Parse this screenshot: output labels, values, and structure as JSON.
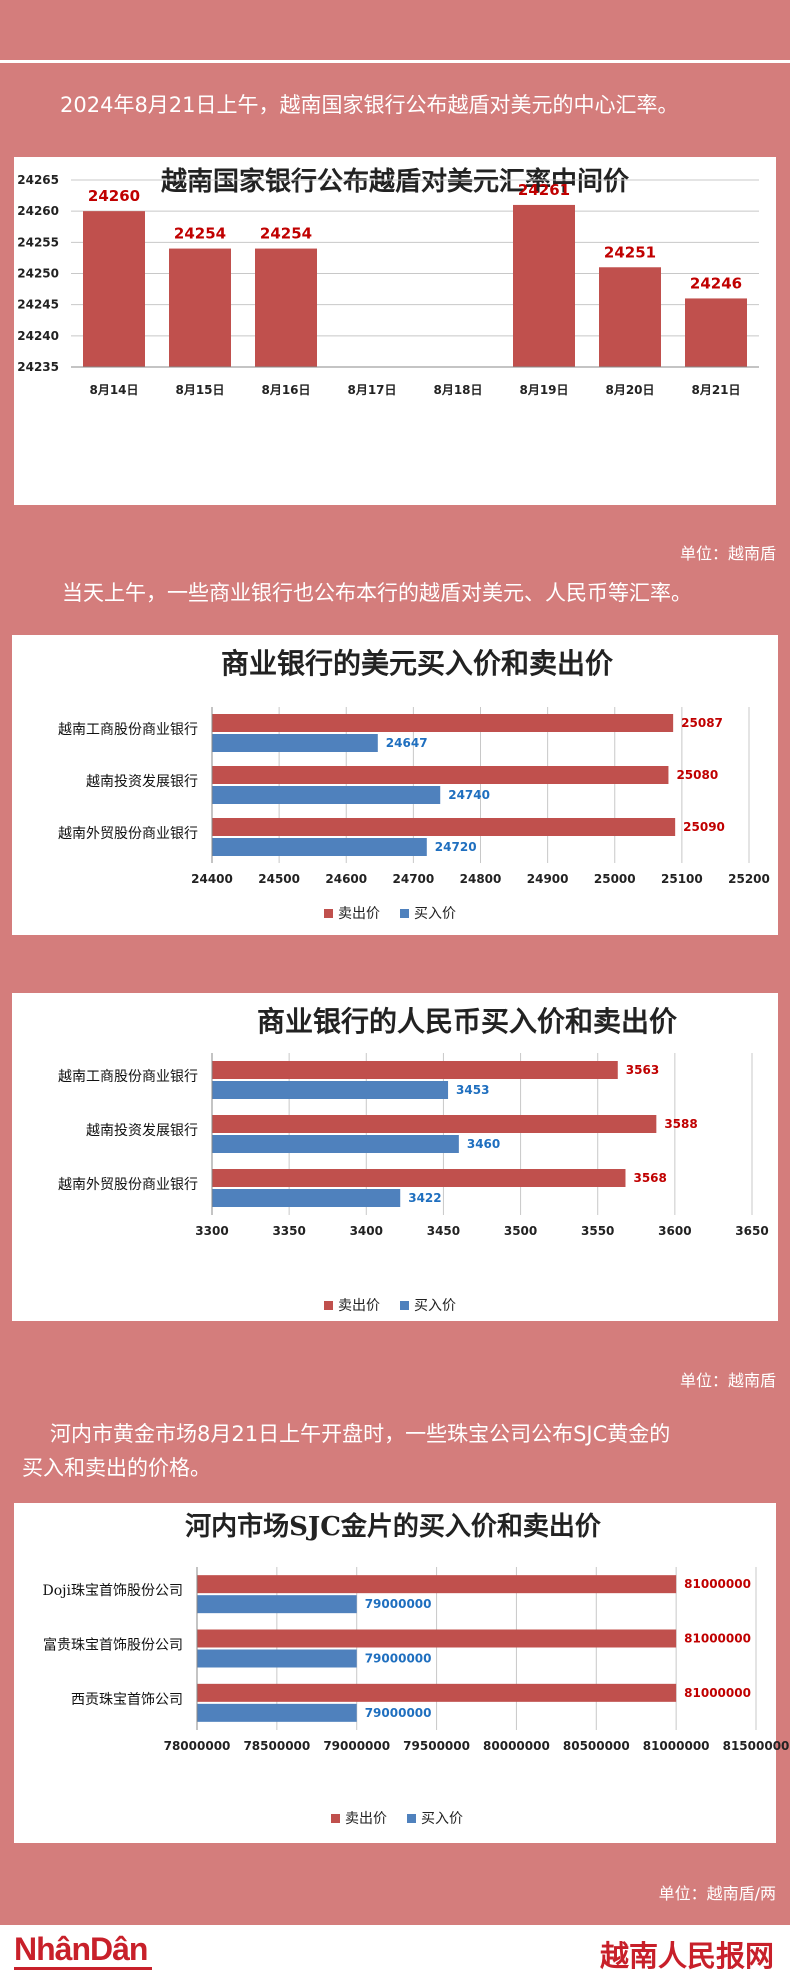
{
  "intro1": "2024年8月21日上午，越南国家银行公布越盾对美元的中心汇率。",
  "unit1": "单位：越南盾",
  "intro2": "当天上午，一些商业银行也公布本行的越盾对美元、人民币等汇率。",
  "unit2": "单位：越南盾",
  "intro3_line1": "河内市黄金市场8月21日上午开盘时，一些珠宝公司公布SJC黄金的",
  "intro3_line2": "买入和卖出的价格。",
  "unit3": "单位：越南盾/两",
  "footer": {
    "logo": "NhânDân",
    "brand": "越南人民报网"
  },
  "colors": {
    "sell": "#c0504d",
    "buy": "#4f81bd",
    "sell_label": "#c00000",
    "buy_label": "#1f6fbf",
    "background": "#d47d7c"
  },
  "chart_data": [
    {
      "type": "bar",
      "title": "越南国家银行公布越盾对美元汇率中间价",
      "categories": [
        "8月14日",
        "8月15日",
        "8月16日",
        "8月17日",
        "8月18日",
        "8月19日",
        "8月20日",
        "8月21日"
      ],
      "values": [
        24260,
        24254,
        24254,
        null,
        null,
        24261,
        24251,
        24246
      ],
      "value_labels": [
        "24260",
        "24254",
        "24254",
        "",
        "",
        "24261",
        "24251",
        "24246"
      ],
      "ylim": [
        24235,
        24265
      ],
      "yticks": [
        "24235",
        "24240",
        "24245",
        "24250",
        "24255",
        "24260",
        "24265"
      ],
      "grid": true
    },
    {
      "type": "bar",
      "orientation": "horizontal",
      "title": "商业银行的美元买入价和卖出价",
      "categories": [
        "越南工商股份商业银行",
        "越南投资发展银行",
        "越南外贸股份商业银行"
      ],
      "series": [
        {
          "name": "卖出价",
          "values": [
            25087,
            25080,
            25090
          ],
          "labels": [
            "25087",
            "25080",
            "25090"
          ]
        },
        {
          "name": "买入价",
          "values": [
            24647,
            24740,
            24720
          ],
          "labels": [
            "24647",
            "24740",
            "24720"
          ]
        }
      ],
      "xlim": [
        24400,
        25200
      ],
      "xticks": [
        "24400",
        "24500",
        "24600",
        "24700",
        "24800",
        "24900",
        "25000",
        "25100",
        "25200"
      ],
      "legend": "bottom",
      "grid": true
    },
    {
      "type": "bar",
      "orientation": "horizontal",
      "title": "商业银行的人民币买入价和卖出价",
      "categories": [
        "越南工商股份商业银行",
        "越南投资发展银行",
        "越南外贸股份商业银行"
      ],
      "series": [
        {
          "name": "卖出价",
          "values": [
            3563,
            3588,
            3568
          ],
          "labels": [
            "3563",
            "3588",
            "3568"
          ]
        },
        {
          "name": "买入价",
          "values": [
            3453,
            3460,
            3422
          ],
          "labels": [
            "3453",
            "3460",
            "3422"
          ]
        }
      ],
      "xlim": [
        3300,
        3650
      ],
      "xticks": [
        "3300",
        "3350",
        "3400",
        "3450",
        "3500",
        "3550",
        "3600",
        "3650"
      ],
      "legend": "bottom",
      "grid": true
    },
    {
      "type": "bar",
      "orientation": "horizontal",
      "title": "河内市场SJC金片的买入价和卖出价",
      "categories": [
        "Doji珠宝首饰股份公司",
        "富贵珠宝首饰股份公司",
        "西贡珠宝首饰公司"
      ],
      "series": [
        {
          "name": "卖出价",
          "values": [
            81000000,
            81000000,
            81000000
          ],
          "labels": [
            "81000000",
            "81000000",
            "81000000"
          ]
        },
        {
          "name": "买入价",
          "values": [
            79000000,
            79000000,
            79000000
          ],
          "labels": [
            "79000000",
            "79000000",
            "79000000"
          ]
        }
      ],
      "xlim": [
        78000000,
        81500000
      ],
      "xticks": [
        "78000000",
        "78500000",
        "79000000",
        "79500000",
        "80000000",
        "80500000",
        "81000000",
        "81500000"
      ],
      "legend": "bottom",
      "grid": true
    }
  ]
}
